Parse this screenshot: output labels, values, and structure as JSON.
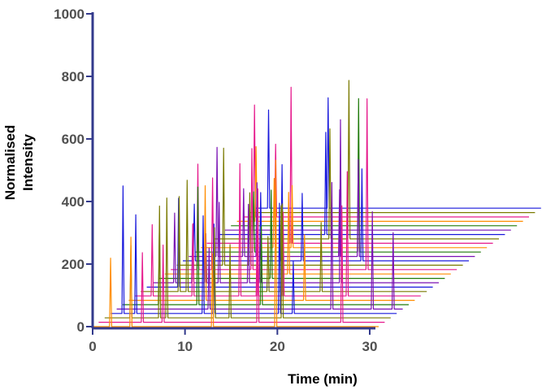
{
  "chart_data": {
    "type": "line",
    "subtype": "stacked-3d-chromatograms",
    "title": "",
    "xlabel": "Time (min)",
    "ylabel_lines": [
      "Normalised",
      "Intensity"
    ],
    "xlim": [
      0,
      31
    ],
    "ylim": [
      0,
      1000
    ],
    "x_ticks": [
      "0",
      "10",
      "20",
      "30"
    ],
    "y_ticks": [
      "0",
      "200",
      "400",
      "600",
      "800",
      "1000"
    ],
    "trace_count": 28,
    "trace_colors": [
      "#ff8c00",
      "#e6198c",
      "#7a7a00",
      "#1a1adc",
      "#7a12b4",
      "#1f7a0a"
    ],
    "axis_color": "#333a8c",
    "grid": false,
    "legend": "none",
    "peak_groups": [
      {
        "rt": 1.8,
        "height": 470
      },
      {
        "rt": 4.3,
        "height": 360
      },
      {
        "rt": 4.9,
        "height": 300
      },
      {
        "rt": 5.6,
        "height": 330
      },
      {
        "rt": 6.7,
        "height": 350
      },
      {
        "rt": 7.8,
        "height": 320
      },
      {
        "rt": 8.6,
        "height": 370
      },
      {
        "rt": 10.9,
        "height": 280
      },
      {
        "rt": 11.9,
        "height": 300
      },
      {
        "rt": 12.8,
        "height": 340
      },
      {
        "rt": 13.9,
        "height": 310
      },
      {
        "rt": 15.4,
        "height": 300
      },
      {
        "rt": 16.8,
        "height": 330
      },
      {
        "rt": 18.2,
        "height": 370
      },
      {
        "rt": 19.8,
        "height": 460
      },
      {
        "rt": 21.3,
        "height": 330
      },
      {
        "rt": 22.7,
        "height": 300
      },
      {
        "rt": 24.9,
        "height": 330
      },
      {
        "rt": 27.1,
        "height": 440
      },
      {
        "rt": 29.8,
        "height": 500
      },
      {
        "rt": 31.6,
        "height": 450
      },
      {
        "rt": 33.7,
        "height": 470
      }
    ]
  }
}
